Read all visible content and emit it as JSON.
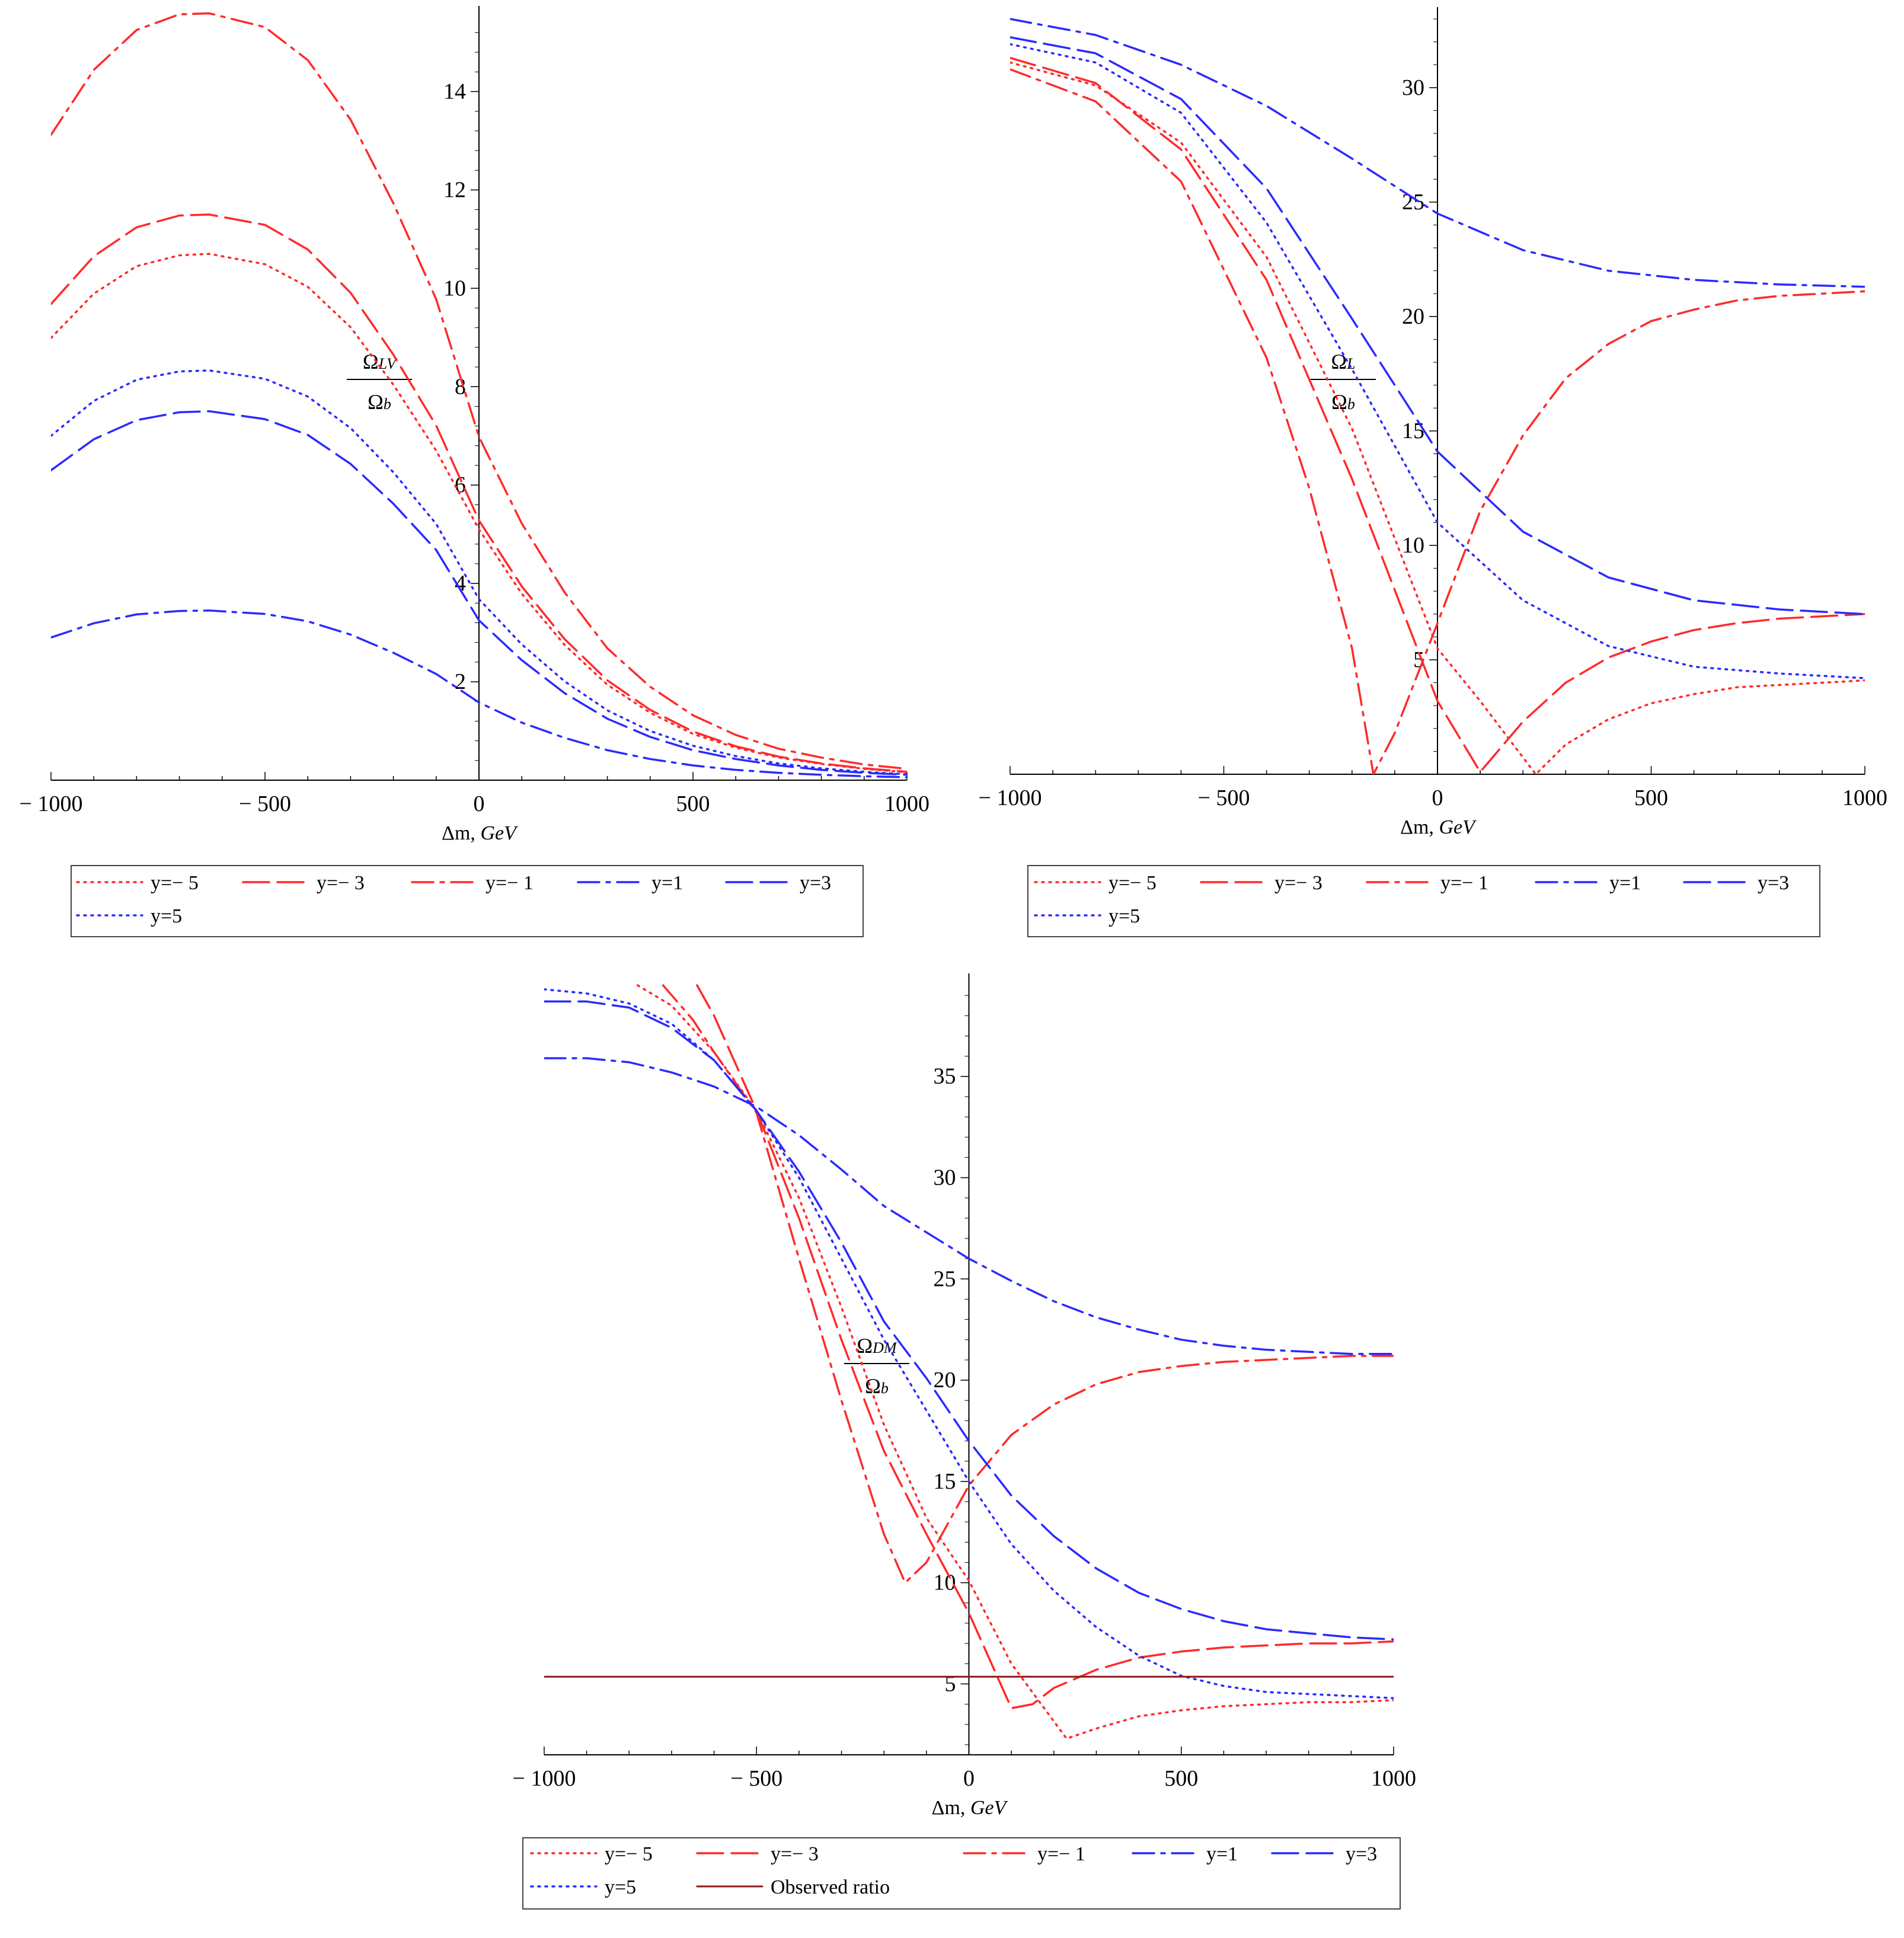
{
  "colors": {
    "red": "#ff2a2a",
    "blue": "#2a2aff",
    "observed": "#8b1a1a"
  },
  "chart_data": [
    {
      "type": "line",
      "ylabel_num": "Ω_LV",
      "ylabel_num_main": "Ω",
      "ylabel_num_sub": "LV",
      "ylabel_den_main": "Ω",
      "ylabel_den_sub": "b",
      "xlabel_main": "Δm, ",
      "xlabel_unit": "GeV",
      "xlim": [
        -1000,
        1000
      ],
      "ylim": [
        0,
        15.5
      ],
      "xticks": [
        -1000,
        -500,
        0,
        500,
        1000
      ],
      "xtick_labels": [
        "− 1000",
        "− 500",
        "0",
        "500",
        "1000"
      ],
      "yticks": [
        2,
        4,
        6,
        8,
        10,
        12,
        14
      ],
      "ytick_labels": [
        "2",
        "4",
        "6",
        "8",
        "10",
        "12",
        "14"
      ],
      "x": [
        -1000,
        -900,
        -800,
        -700,
        -630,
        -500,
        -400,
        -300,
        -200,
        -100,
        0,
        100,
        200,
        300,
        400,
        500,
        600,
        700,
        800,
        900,
        1000
      ],
      "series": [
        {
          "name": "y=− 5",
          "color": "red",
          "style": "dotted",
          "values": [
            8.99,
            9.89,
            10.45,
            10.67,
            10.7,
            10.49,
            10.03,
            9.21,
            8.04,
            6.7,
            5.1,
            3.79,
            2.75,
            1.94,
            1.37,
            0.94,
            0.66,
            0.46,
            0.33,
            0.23,
            0.16
          ]
        },
        {
          "name": "y=− 3",
          "color": "red",
          "style": "dashed",
          "values": [
            9.68,
            10.65,
            11.24,
            11.48,
            11.5,
            11.29,
            10.79,
            9.91,
            8.65,
            7.21,
            5.28,
            3.94,
            2.87,
            2.03,
            1.43,
            0.99,
            0.69,
            0.48,
            0.34,
            0.24,
            0.17
          ]
        },
        {
          "name": "y=− 1",
          "color": "red",
          "style": "dashdot",
          "values": [
            13.12,
            14.44,
            15.25,
            15.57,
            15.59,
            15.31,
            14.64,
            13.43,
            11.73,
            9.78,
            6.98,
            5.22,
            3.82,
            2.68,
            1.9,
            1.32,
            0.92,
            0.64,
            0.46,
            0.32,
            0.23
          ]
        },
        {
          "name": "y=1",
          "color": "blue",
          "style": "dashdot",
          "values": [
            2.9,
            3.19,
            3.37,
            3.44,
            3.45,
            3.38,
            3.23,
            2.96,
            2.59,
            2.16,
            1.58,
            1.17,
            0.86,
            0.61,
            0.43,
            0.3,
            0.21,
            0.15,
            0.11,
            0.08,
            0.06
          ]
        },
        {
          "name": "y=3",
          "color": "blue",
          "style": "dashed",
          "values": [
            6.3,
            6.93,
            7.32,
            7.48,
            7.5,
            7.34,
            7.02,
            6.43,
            5.62,
            4.68,
            3.25,
            2.44,
            1.77,
            1.25,
            0.88,
            0.61,
            0.43,
            0.3,
            0.21,
            0.15,
            0.11
          ]
        },
        {
          "name": "y=5",
          "color": "blue",
          "style": "dotted",
          "values": [
            7.0,
            7.71,
            8.14,
            8.31,
            8.33,
            8.16,
            7.8,
            7.16,
            6.26,
            5.21,
            3.68,
            2.76,
            2.01,
            1.42,
            1.0,
            0.7,
            0.49,
            0.34,
            0.24,
            0.17,
            0.12
          ]
        }
      ]
    },
    {
      "type": "line",
      "ylabel_num_main": "Ω",
      "ylabel_num_sub": "L",
      "ylabel_den_main": "Ω",
      "ylabel_den_sub": "b",
      "xlabel_main": "Δm, ",
      "xlabel_unit": "GeV",
      "xlim": [
        -1000,
        1000
      ],
      "ylim": [
        0,
        33
      ],
      "xticks": [
        -1000,
        -500,
        0,
        500,
        1000
      ],
      "xtick_labels": [
        "− 1000",
        "− 500",
        "0",
        "500",
        "1000"
      ],
      "yticks": [
        5,
        10,
        15,
        20,
        25,
        30
      ],
      "ytick_labels": [
        "5",
        "10",
        "15",
        "20",
        "25",
        "30"
      ],
      "series": [
        {
          "name": "y=− 5",
          "color": "red",
          "style": "dotted",
          "x": [
            -1000,
            -800,
            -600,
            -400,
            -200,
            0,
            100,
            230,
            300,
            400,
            500,
            600,
            700,
            800,
            900,
            1000
          ],
          "values": [
            31.1,
            30.1,
            27.6,
            22.6,
            15.1,
            5.5,
            3.2,
            0.0,
            1.3,
            2.4,
            3.1,
            3.5,
            3.8,
            3.9,
            4.0,
            4.1
          ]
        },
        {
          "name": "y=− 3",
          "color": "red",
          "style": "dashed",
          "x": [
            -1000,
            -800,
            -600,
            -400,
            -200,
            0,
            100,
            200,
            300,
            400,
            500,
            600,
            700,
            800,
            900,
            1000
          ],
          "values": [
            31.3,
            30.2,
            27.3,
            21.6,
            12.9,
            3.2,
            0.1,
            2.3,
            4.0,
            5.1,
            5.8,
            6.3,
            6.6,
            6.8,
            6.9,
            7.0
          ]
        },
        {
          "name": "y=− 1",
          "color": "red",
          "style": "dashdot",
          "x": [
            -1000,
            -800,
            -600,
            -400,
            -300,
            -200,
            -150,
            -100,
            0,
            100,
            200,
            300,
            400,
            500,
            600,
            700,
            800,
            900,
            1000
          ],
          "values": [
            30.8,
            29.4,
            25.9,
            18.2,
            12.5,
            5.5,
            0.0,
            1.8,
            6.6,
            11.5,
            14.8,
            17.3,
            18.8,
            19.8,
            20.3,
            20.7,
            20.9,
            21.0,
            21.1
          ]
        },
        {
          "name": "y=1",
          "color": "blue",
          "style": "dashdot",
          "x": [
            -1000,
            -800,
            -600,
            -400,
            -200,
            0,
            200,
            400,
            600,
            800,
            1000
          ],
          "values": [
            33.0,
            32.3,
            31.0,
            29.2,
            26.9,
            24.5,
            22.9,
            22.0,
            21.6,
            21.4,
            21.3
          ]
        },
        {
          "name": "y=3",
          "color": "blue",
          "style": "dashed",
          "x": [
            -1000,
            -800,
            -600,
            -400,
            -200,
            0,
            200,
            400,
            600,
            800,
            1000
          ],
          "values": [
            32.2,
            31.5,
            29.5,
            25.6,
            19.9,
            14.1,
            10.6,
            8.6,
            7.6,
            7.2,
            7.0
          ]
        },
        {
          "name": "y=5",
          "color": "blue",
          "style": "dotted",
          "x": [
            -1000,
            -800,
            -600,
            -400,
            -200,
            0,
            200,
            400,
            600,
            800,
            1000
          ],
          "values": [
            31.9,
            31.1,
            28.9,
            24.1,
            17.7,
            11.0,
            7.6,
            5.6,
            4.7,
            4.4,
            4.2
          ]
        }
      ]
    },
    {
      "type": "line",
      "ylabel_num_main": "Ω",
      "ylabel_num_sub": "DM",
      "ylabel_den_main": "Ω",
      "ylabel_den_sub": "b",
      "xlabel_main": "Δm, ",
      "xlabel_unit": "GeV",
      "xlim": [
        -1000,
        1000
      ],
      "ylim": [
        1.5,
        39.5
      ],
      "xticks": [
        -1000,
        -500,
        0,
        500,
        1000
      ],
      "xtick_labels": [
        "− 1000",
        "− 500",
        "0",
        "500",
        "1000"
      ],
      "yticks": [
        5,
        10,
        15,
        20,
        25,
        30,
        35
      ],
      "ytick_labels": [
        "5",
        "10",
        "15",
        "20",
        "25",
        "30",
        "35"
      ],
      "observed_ratio": 5.36,
      "series": [
        {
          "name": "y=− 5",
          "color": "red",
          "style": "dotted",
          "x": [
            -780,
            -700,
            -600,
            -500,
            -400,
            -300,
            -200,
            -100,
            0,
            100,
            230,
            300,
            400,
            500,
            600,
            700,
            800,
            900,
            1000
          ],
          "values": [
            39.5,
            38.5,
            36.2,
            33.3,
            29.0,
            23.6,
            17.8,
            13.2,
            10.1,
            6.0,
            2.3,
            2.8,
            3.4,
            3.7,
            3.9,
            4.0,
            4.1,
            4.1,
            4.2
          ]
        },
        {
          "name": "y=− 3",
          "color": "red",
          "style": "dashed",
          "x": [
            -640,
            -600,
            -500,
            -400,
            -300,
            -200,
            -100,
            0,
            100,
            150,
            200,
            300,
            400,
            500,
            600,
            700,
            800,
            900,
            1000
          ],
          "values": [
            39.5,
            38.0,
            33.3,
            28.0,
            22.0,
            16.5,
            12.4,
            8.5,
            3.8,
            4.0,
            4.8,
            5.7,
            6.3,
            6.6,
            6.8,
            6.9,
            7.0,
            7.0,
            7.1
          ]
        },
        {
          "name": "y=− 1",
          "color": "red",
          "style": "dashdot",
          "x": [
            -720,
            -650,
            -600,
            -500,
            -400,
            -300,
            -200,
            -150,
            -100,
            0,
            100,
            200,
            300,
            400,
            500,
            600,
            700,
            800,
            900,
            1000
          ],
          "values": [
            39.5,
            37.8,
            36.2,
            33.2,
            26.0,
            19.0,
            12.4,
            10.0,
            11.0,
            14.8,
            17.3,
            18.8,
            19.8,
            20.4,
            20.7,
            20.9,
            21.0,
            21.1,
            21.2,
            21.2
          ]
        },
        {
          "name": "y=1",
          "color": "blue",
          "style": "dashdot",
          "x": [
            -1000,
            -900,
            -800,
            -700,
            -600,
            -500,
            -400,
            -300,
            -200,
            -100,
            0,
            100,
            200,
            300,
            400,
            500,
            600,
            700,
            800,
            900,
            1000
          ],
          "values": [
            35.9,
            35.9,
            35.7,
            35.2,
            34.5,
            33.5,
            32.1,
            30.4,
            28.6,
            27.3,
            26.0,
            24.9,
            23.9,
            23.1,
            22.5,
            22.0,
            21.7,
            21.5,
            21.4,
            21.3,
            21.3
          ]
        },
        {
          "name": "y=3",
          "color": "blue",
          "style": "dashed",
          "x": [
            -1000,
            -900,
            -800,
            -700,
            -600,
            -500,
            -400,
            -300,
            -200,
            -100,
            0,
            100,
            200,
            300,
            400,
            500,
            600,
            700,
            800,
            900,
            1000
          ],
          "values": [
            38.7,
            38.7,
            38.4,
            37.4,
            35.8,
            33.3,
            30.3,
            26.8,
            22.9,
            20.1,
            17.0,
            14.3,
            12.3,
            10.7,
            9.5,
            8.7,
            8.1,
            7.7,
            7.5,
            7.3,
            7.2
          ]
        },
        {
          "name": "y=5",
          "color": "blue",
          "style": "dotted",
          "x": [
            -1000,
            -900,
            -800,
            -700,
            -600,
            -500,
            -400,
            -300,
            -200,
            -100,
            0,
            100,
            200,
            300,
            400,
            500,
            600,
            700,
            800,
            900,
            1000
          ],
          "values": [
            39.3,
            39.1,
            38.6,
            37.6,
            35.8,
            33.3,
            30.0,
            26.0,
            22.0,
            18.5,
            15.0,
            11.9,
            9.6,
            7.8,
            6.4,
            5.4,
            4.9,
            4.6,
            4.5,
            4.4,
            4.3
          ]
        },
        {
          "name": "Observed ratio",
          "color": "observed",
          "style": "solid",
          "x": [
            -1000,
            1000
          ],
          "values": [
            5.36,
            5.36
          ]
        }
      ]
    }
  ]
}
